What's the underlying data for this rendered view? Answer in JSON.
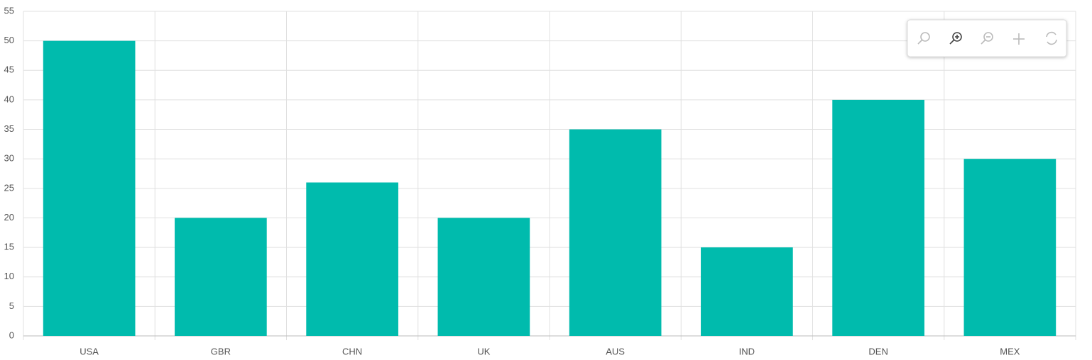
{
  "chart_data": {
    "type": "bar",
    "categories": [
      "USA",
      "GBR",
      "CHN",
      "UK",
      "AUS",
      "IND",
      "DEN",
      "MEX"
    ],
    "values": [
      50,
      20,
      26,
      20,
      35,
      15,
      40,
      30
    ],
    "color": "#00bbad",
    "ylim": [
      0,
      55
    ],
    "yticks": [
      0,
      5,
      10,
      15,
      20,
      25,
      30,
      35,
      40,
      45,
      50,
      55
    ],
    "grid": true
  }
}
